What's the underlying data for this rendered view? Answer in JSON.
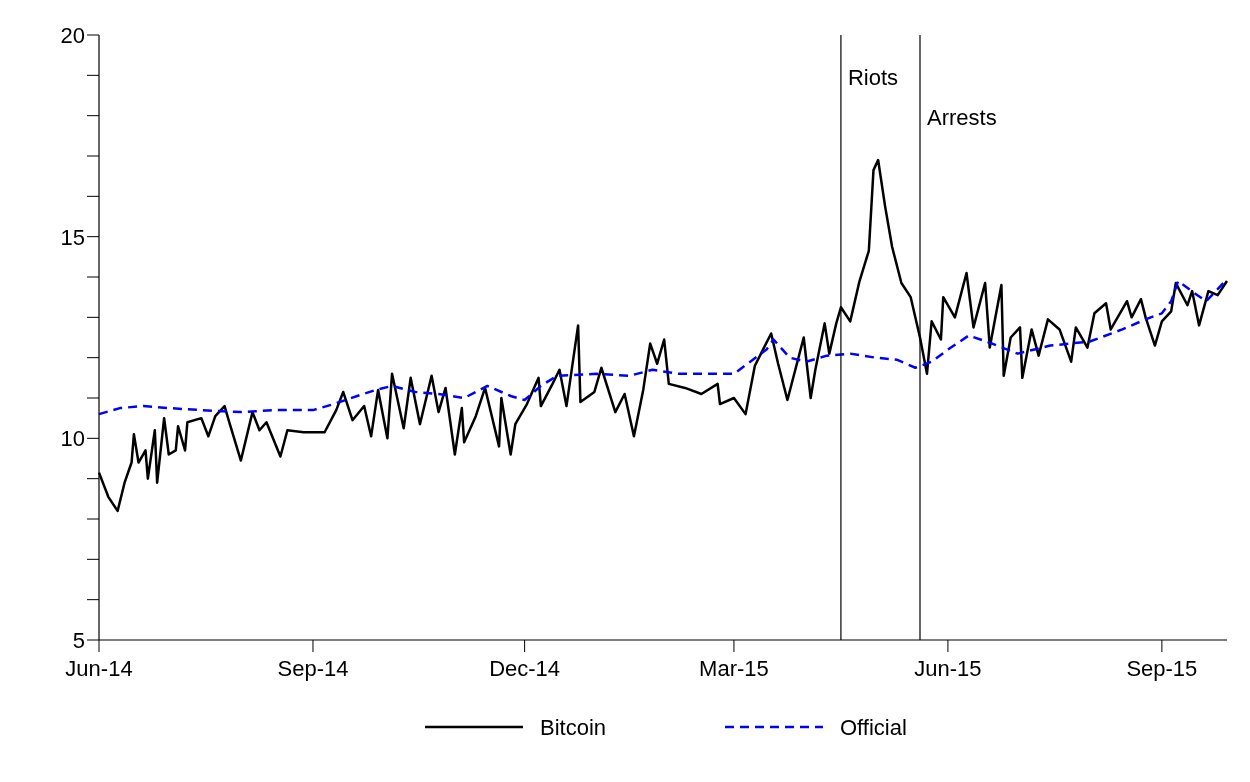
{
  "chart_data": {
    "type": "line",
    "x": [
      "2014-06-01",
      "2014-06-05",
      "2014-06-09",
      "2014-06-12",
      "2014-06-15",
      "2014-06-16",
      "2014-06-18",
      "2014-06-21",
      "2014-06-22",
      "2014-06-25",
      "2014-06-26",
      "2014-06-29",
      "2014-07-01",
      "2014-07-04",
      "2014-07-05",
      "2014-07-08",
      "2014-07-09",
      "2014-07-15",
      "2014-07-18",
      "2014-07-21",
      "2014-07-25",
      "2014-07-27",
      "2014-08-01",
      "2014-08-06",
      "2014-08-09",
      "2014-08-12",
      "2014-08-18",
      "2014-08-21",
      "2014-08-28",
      "2014-09-06",
      "2014-09-11",
      "2014-09-14",
      "2014-09-18",
      "2014-09-23",
      "2014-09-26",
      "2014-09-29",
      "2014-10-03",
      "2014-10-05",
      "2014-10-10",
      "2014-10-13",
      "2014-10-17",
      "2014-10-22",
      "2014-10-25",
      "2014-10-28",
      "2014-11-01",
      "2014-11-04",
      "2014-11-05",
      "2014-11-10",
      "2014-11-14",
      "2014-11-20",
      "2014-11-21",
      "2014-11-25",
      "2014-11-27",
      "2014-12-02",
      "2014-12-07",
      "2014-12-08",
      "2014-12-13",
      "2014-12-16",
      "2014-12-19",
      "2014-12-24",
      "2014-12-25",
      "2014-12-31",
      "2015-01-03",
      "2015-01-09",
      "2015-01-13",
      "2015-01-17",
      "2015-01-21",
      "2015-01-24",
      "2015-01-27",
      "2015-01-30",
      "2015-02-01",
      "2015-02-08",
      "2015-02-15",
      "2015-02-22",
      "2015-02-23",
      "2015-03-01",
      "2015-03-06",
      "2015-03-10",
      "2015-03-17",
      "2015-03-20",
      "2015-03-24",
      "2015-03-31",
      "2015-04-03",
      "2015-04-05",
      "2015-04-09",
      "2015-04-11",
      "2015-04-14",
      "2015-04-16",
      "2015-04-20",
      "2015-04-24",
      "2015-04-28",
      "2015-04-30",
      "2015-05-02",
      "2015-05-05",
      "2015-05-08",
      "2015-05-12",
      "2015-05-16",
      "2015-05-20",
      "2015-05-23",
      "2015-05-25",
      "2015-05-29",
      "2015-05-30",
      "2015-06-04",
      "2015-06-09",
      "2015-06-12",
      "2015-06-17",
      "2015-06-19",
      "2015-06-24",
      "2015-06-25",
      "2015-06-28",
      "2015-07-02",
      "2015-07-03",
      "2015-07-07",
      "2015-07-10",
      "2015-07-14",
      "2015-07-19",
      "2015-07-24",
      "2015-07-26",
      "2015-07-31",
      "2015-08-03",
      "2015-08-08",
      "2015-08-10",
      "2015-08-17",
      "2015-08-19",
      "2015-08-23",
      "2015-08-25",
      "2015-08-29",
      "2015-09-01",
      "2015-09-05",
      "2015-09-07",
      "2015-09-12",
      "2015-09-14",
      "2015-09-17",
      "2015-09-21",
      "2015-09-25",
      "2015-09-29"
    ],
    "series": [
      {
        "name": "Bitcoin",
        "color": "#000000",
        "line_style": "solid",
        "values": [
          9.15,
          8.55,
          8.2,
          8.9,
          9.4,
          10.1,
          9.4,
          9.7,
          9.0,
          10.2,
          8.9,
          10.5,
          9.6,
          9.7,
          10.3,
          9.7,
          10.4,
          10.5,
          10.05,
          10.55,
          10.8,
          10.4,
          9.45,
          10.65,
          10.2,
          10.4,
          9.55,
          10.2,
          10.15,
          10.15,
          10.7,
          11.15,
          10.45,
          10.8,
          10.05,
          11.2,
          10.0,
          11.6,
          10.25,
          11.5,
          10.35,
          11.55,
          10.65,
          11.25,
          9.6,
          10.75,
          9.9,
          10.55,
          11.25,
          9.8,
          11.0,
          9.6,
          10.35,
          10.85,
          11.5,
          10.8,
          11.35,
          11.7,
          10.8,
          12.8,
          10.9,
          11.15,
          11.75,
          10.65,
          11.1,
          10.05,
          11.2,
          12.35,
          11.85,
          12.45,
          11.35,
          11.25,
          11.1,
          11.35,
          10.85,
          11.0,
          10.6,
          11.8,
          12.6,
          11.85,
          10.95,
          12.5,
          11.0,
          11.7,
          12.85,
          12.1,
          12.85,
          13.25,
          12.9,
          13.9,
          14.65,
          16.65,
          16.9,
          15.75,
          14.75,
          13.85,
          13.5,
          12.5,
          11.6,
          12.9,
          12.45,
          13.5,
          13.0,
          14.1,
          12.75,
          13.85,
          12.25,
          13.8,
          11.55,
          12.5,
          12.75,
          11.5,
          12.7,
          12.05,
          12.95,
          12.7,
          11.9,
          12.75,
          12.25,
          13.1,
          13.35,
          12.7,
          13.4,
          13.0,
          13.45,
          13.0,
          12.3,
          12.9,
          13.15,
          13.85,
          13.3,
          13.65,
          12.8,
          13.65,
          13.55,
          13.9
        ]
      },
      {
        "name": "Official",
        "color": "#0000ff",
        "line_style": "dashed",
        "x": [
          "2014-06-01",
          "2014-06-10",
          "2014-06-20",
          "2014-07-01",
          "2014-07-15",
          "2014-08-01",
          "2014-08-15",
          "2014-09-01",
          "2014-09-10",
          "2014-09-20",
          "2014-09-28",
          "2014-10-05",
          "2014-10-15",
          "2014-10-25",
          "2014-11-05",
          "2014-11-15",
          "2014-11-25",
          "2014-12-01",
          "2014-12-08",
          "2014-12-15",
          "2015-01-01",
          "2015-01-15",
          "2015-01-25",
          "2015-02-05",
          "2015-02-20",
          "2015-03-01",
          "2015-03-08",
          "2015-03-15",
          "2015-03-18",
          "2015-03-25",
          "2015-04-01",
          "2015-04-10",
          "2015-04-20",
          "2015-05-01",
          "2015-05-10",
          "2015-05-18",
          "2015-05-25",
          "2015-06-01",
          "2015-06-10",
          "2015-06-20",
          "2015-07-01",
          "2015-07-15",
          "2015-08-01",
          "2015-08-15",
          "2015-08-25",
          "2015-09-01",
          "2015-09-05",
          "2015-09-08",
          "2015-09-15",
          "2015-09-20",
          "2015-09-25",
          "2015-09-29"
        ],
        "values": [
          10.6,
          10.75,
          10.8,
          10.75,
          10.7,
          10.65,
          10.7,
          10.7,
          10.85,
          11.05,
          11.2,
          11.3,
          11.15,
          11.1,
          11.0,
          11.3,
          11.05,
          10.95,
          11.3,
          11.55,
          11.6,
          11.55,
          11.7,
          11.6,
          11.6,
          11.6,
          11.9,
          12.2,
          12.45,
          12.0,
          11.9,
          12.05,
          12.1,
          12.0,
          11.95,
          11.75,
          11.9,
          12.2,
          12.55,
          12.35,
          12.1,
          12.3,
          12.4,
          12.7,
          12.95,
          13.1,
          13.4,
          13.9,
          13.6,
          13.4,
          13.7,
          13.95
        ]
      }
    ],
    "xlim": [
      "2014-06-01",
      "2015-09-29"
    ],
    "xticks": [
      {
        "value": "2014-06-01",
        "label": "Jun-14"
      },
      {
        "value": "2014-09-01",
        "label": "Sep-14"
      },
      {
        "value": "2014-12-01",
        "label": "Dec-14"
      },
      {
        "value": "2015-03-01",
        "label": "Mar-15"
      },
      {
        "value": "2015-06-01",
        "label": "Jun-15"
      },
      {
        "value": "2015-09-01",
        "label": "Sep-15"
      }
    ],
    "ylim": [
      5,
      20
    ],
    "yticks": [
      5,
      {
        "value": 6,
        "label": null
      },
      {
        "value": 7,
        "label": null
      },
      {
        "value": 8,
        "label": null
      },
      {
        "value": 9,
        "label": null
      },
      10,
      {
        "value": 11,
        "label": null
      },
      {
        "value": 12,
        "label": null
      },
      {
        "value": 13,
        "label": null
      },
      {
        "value": 14,
        "label": null
      },
      15,
      {
        "value": 16,
        "label": null
      },
      {
        "value": 17,
        "label": null
      },
      {
        "value": 18,
        "label": null
      },
      {
        "value": 19,
        "label": null
      },
      20
    ],
    "ref_lines": [
      {
        "axis": "x",
        "value": "2015-04-16",
        "label": "Riots",
        "color": "#000000"
      },
      {
        "axis": "x",
        "value": "2015-05-20",
        "label": "Arrests",
        "color": "#000000"
      }
    ],
    "grid": false,
    "legend": "bottom"
  }
}
